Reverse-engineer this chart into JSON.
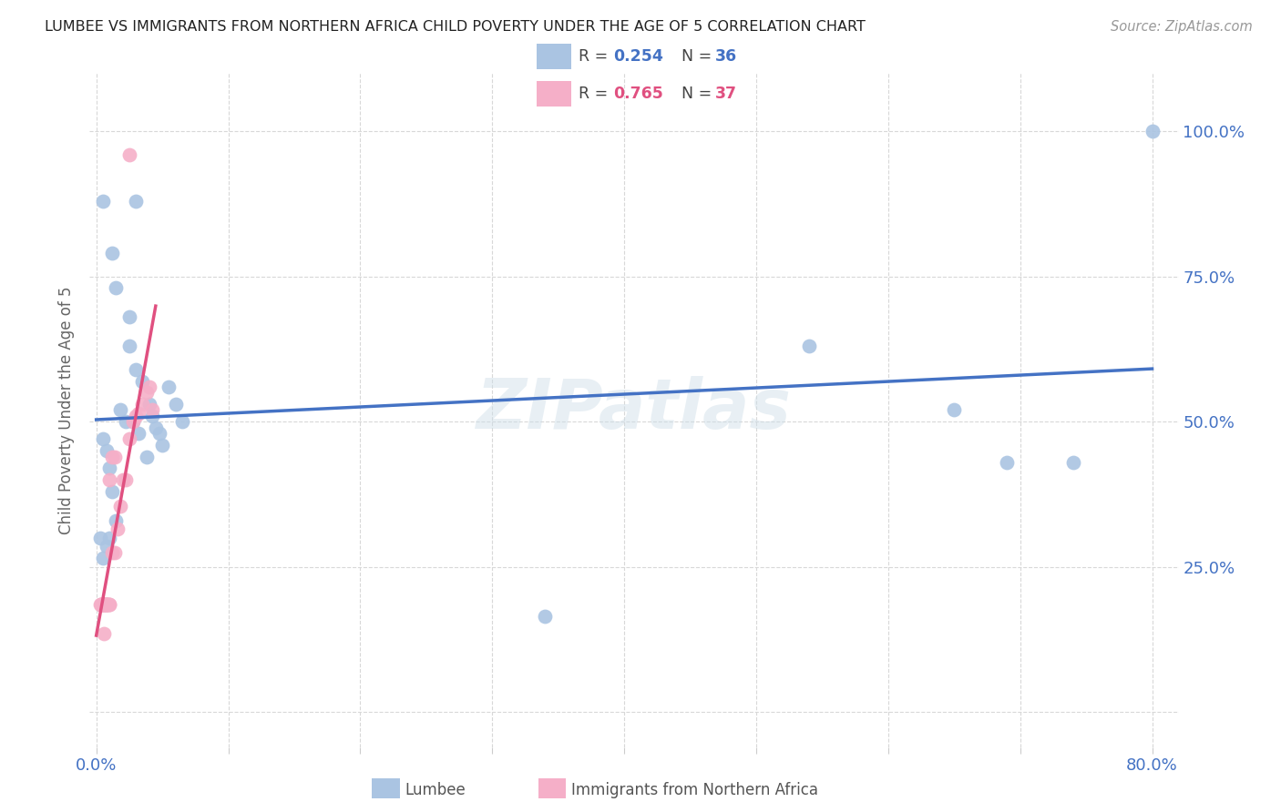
{
  "title": "LUMBEE VS IMMIGRANTS FROM NORTHERN AFRICA CHILD POVERTY UNDER THE AGE OF 5 CORRELATION CHART",
  "source": "Source: ZipAtlas.com",
  "ylabel": "Child Poverty Under the Age of 5",
  "watermark": "ZIPatlas",
  "legend_lumbee": "Lumbee",
  "legend_immigrants": "Immigrants from Northern Africa",
  "R_lumbee": 0.254,
  "N_lumbee": 36,
  "R_immigrants": 0.765,
  "N_immigrants": 37,
  "lumbee_color": "#aac4e2",
  "immigrants_color": "#f5afc8",
  "lumbee_line_color": "#4472c4",
  "immigrants_line_color": "#e05080",
  "immigrants_dashed_color": "#e8b0c0",
  "ytick_vals": [
    0.0,
    0.25,
    0.5,
    0.75,
    1.0
  ],
  "ytick_labels": [
    "",
    "25.0%",
    "50.0%",
    "75.0%",
    "100.0%"
  ],
  "xtick_vals": [
    0.0,
    0.1,
    0.2,
    0.3,
    0.4,
    0.5,
    0.6,
    0.7,
    0.8
  ],
  "xlim": [
    -0.005,
    0.82
  ],
  "ylim": [
    -0.06,
    1.1
  ],
  "lumbee_x": [
    0.005,
    0.03,
    0.012,
    0.015,
    0.025,
    0.025,
    0.03,
    0.035,
    0.04,
    0.042,
    0.045,
    0.048,
    0.055,
    0.06,
    0.065,
    0.005,
    0.008,
    0.01,
    0.012,
    0.015,
    0.01,
    0.008,
    0.005,
    0.003,
    0.018,
    0.022,
    0.028,
    0.032,
    0.038,
    0.05,
    0.34,
    0.54,
    0.65,
    0.69,
    0.74,
    0.8
  ],
  "lumbee_y": [
    0.88,
    0.88,
    0.79,
    0.73,
    0.68,
    0.63,
    0.59,
    0.57,
    0.53,
    0.51,
    0.49,
    0.48,
    0.56,
    0.53,
    0.5,
    0.47,
    0.45,
    0.42,
    0.38,
    0.33,
    0.3,
    0.285,
    0.265,
    0.3,
    0.52,
    0.5,
    0.5,
    0.48,
    0.44,
    0.46,
    0.165,
    0.63,
    0.52,
    0.43,
    0.43,
    1.0
  ],
  "immigrants_x": [
    0.003,
    0.004,
    0.004,
    0.004,
    0.005,
    0.005,
    0.005,
    0.006,
    0.006,
    0.007,
    0.007,
    0.007,
    0.008,
    0.008,
    0.008,
    0.009,
    0.01,
    0.01,
    0.012,
    0.014,
    0.016,
    0.018,
    0.02,
    0.022,
    0.025,
    0.028,
    0.03,
    0.032,
    0.035,
    0.038,
    0.04,
    0.042,
    0.025,
    0.006,
    0.01,
    0.012,
    0.014
  ],
  "immigrants_y": [
    0.185,
    0.185,
    0.185,
    0.185,
    0.185,
    0.185,
    0.185,
    0.185,
    0.185,
    0.185,
    0.185,
    0.185,
    0.185,
    0.185,
    0.185,
    0.185,
    0.185,
    0.185,
    0.275,
    0.275,
    0.315,
    0.355,
    0.4,
    0.4,
    0.47,
    0.5,
    0.51,
    0.515,
    0.53,
    0.55,
    0.56,
    0.52,
    0.96,
    0.135,
    0.4,
    0.44,
    0.44
  ]
}
